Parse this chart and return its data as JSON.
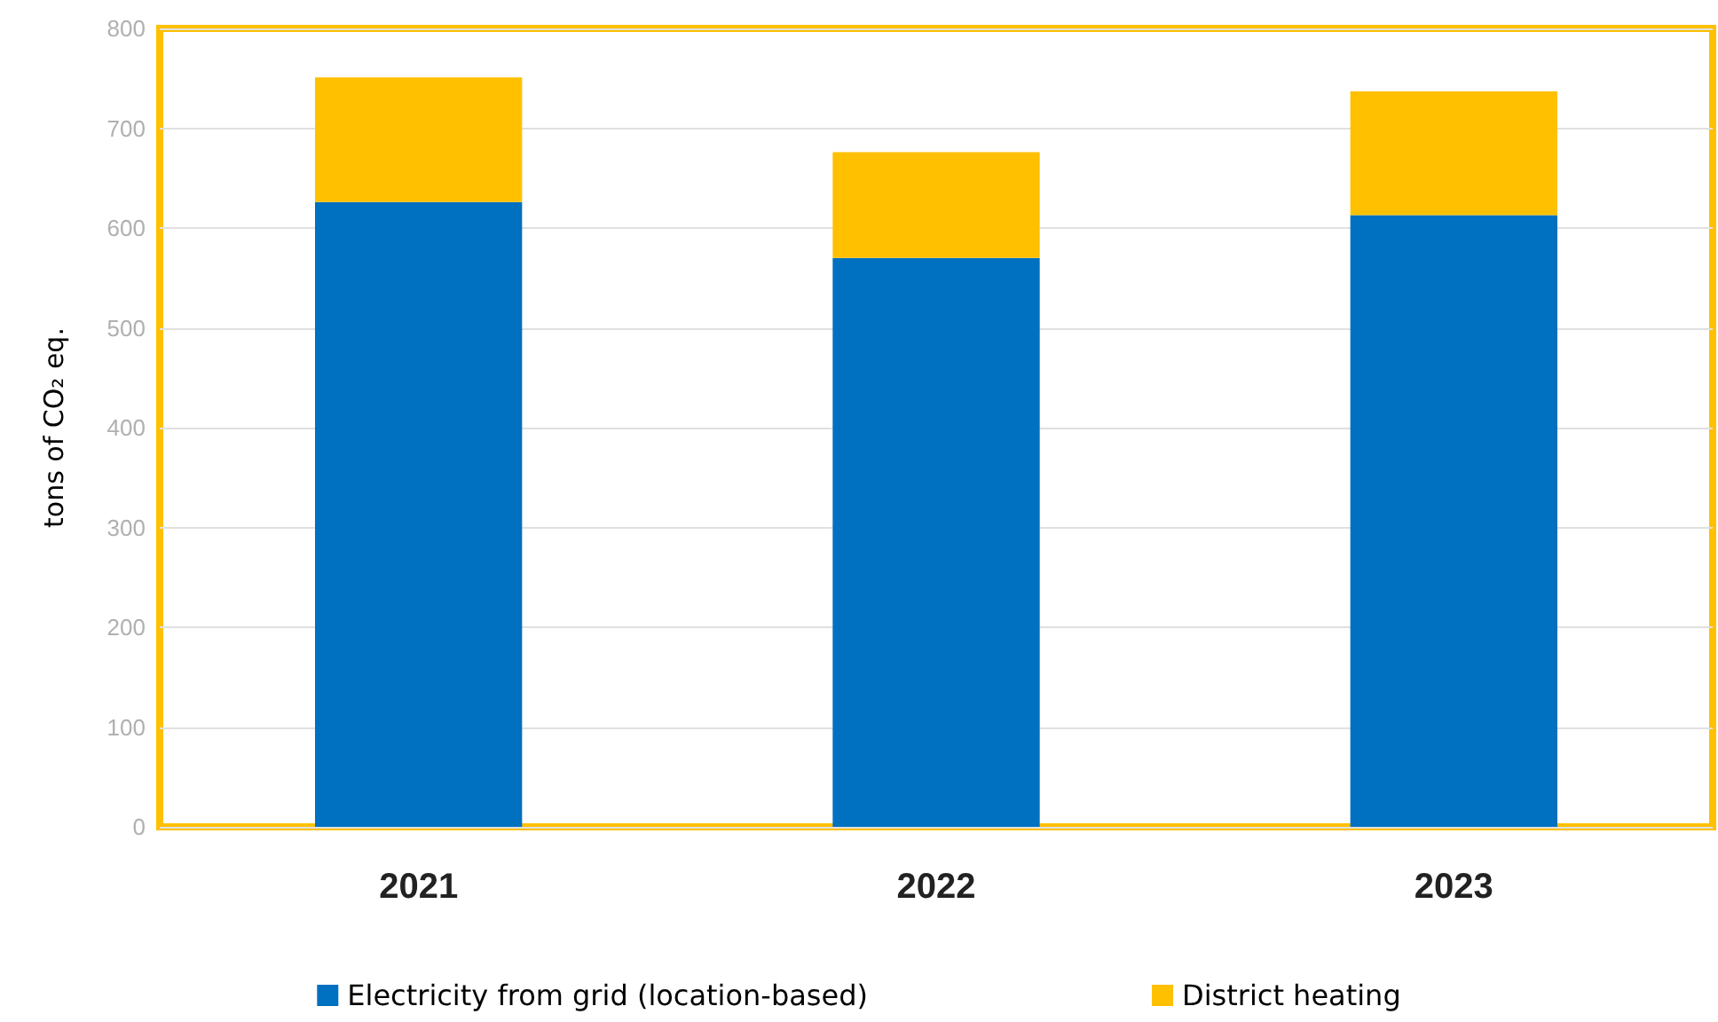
{
  "chart_data": {
    "type": "bar",
    "ylabel": "tons of CO₂ eq.",
    "categories": [
      "2021",
      "2022",
      "2023"
    ],
    "stacked": true,
    "series": [
      {
        "name": "Electricity from grid (location-based)",
        "color": "#0070c0",
        "values": [
          626,
          570,
          613
        ]
      },
      {
        "name": "District heating",
        "color": "#ffc000",
        "values": [
          125,
          106,
          124
        ]
      }
    ],
    "ylim": [
      0,
      800
    ],
    "yticks": [
      0,
      100,
      200,
      300,
      400,
      500,
      600,
      700,
      800
    ],
    "grid": "y",
    "legend": "bottom"
  }
}
